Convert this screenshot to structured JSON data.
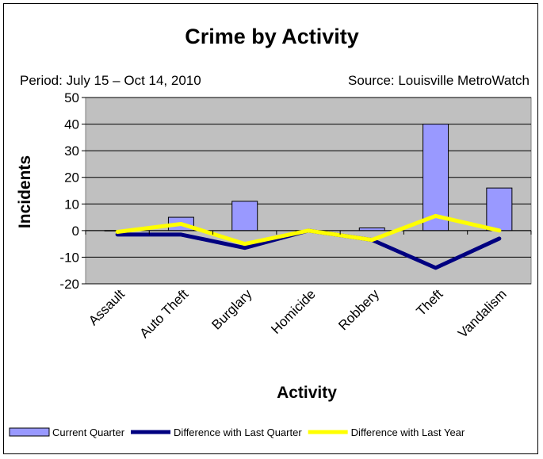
{
  "chart_data": {
    "type": "bar",
    "title": "Crime by Activity",
    "period": "Period: July 15 – Oct 14, 2010",
    "source": "Source: Louisville MetroWatch",
    "xlabel": "Activity",
    "ylabel": "Incidents",
    "ylim": [
      -20,
      50
    ],
    "yticks": [
      -20,
      -10,
      0,
      10,
      20,
      30,
      40,
      50
    ],
    "grid": true,
    "legend_position": "bottom",
    "categories": [
      "Assault",
      "Auto Theft",
      "Burglary",
      "Homicide",
      "Robbery",
      "Theft",
      "Vandalism"
    ],
    "series": [
      {
        "name": "Current Quarter",
        "kind": "bar",
        "color": "#9999ff",
        "values": [
          0,
          5,
          11,
          0,
          1,
          40,
          16
        ]
      },
      {
        "name": "Difference with Last Quarter",
        "kind": "line",
        "color": "#000080",
        "values": [
          -1.5,
          -1.5,
          -6.5,
          0,
          -3.5,
          -14,
          -3
        ]
      },
      {
        "name": "Difference with Last Year",
        "kind": "line",
        "color": "#ffff00",
        "values": [
          -0.5,
          2.5,
          -5,
          0,
          -3.5,
          5.5,
          0
        ]
      }
    ],
    "plot_background": "#c0c0c0"
  }
}
